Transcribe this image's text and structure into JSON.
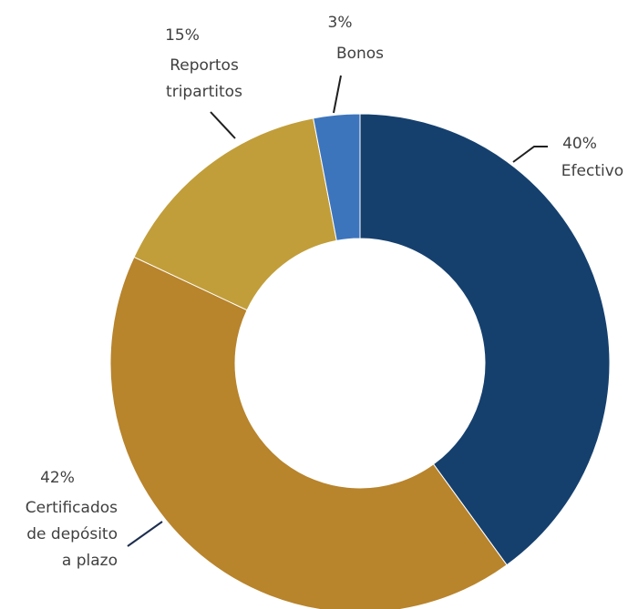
{
  "chart_data": {
    "type": "donut",
    "title": "",
    "slices": [
      {
        "label_lines": [
          "Efectivo"
        ],
        "pct_label": "40%",
        "value": 40,
        "color": "#15406e"
      },
      {
        "label_lines": [
          "Certificados",
          "de depósito",
          "a plazo"
        ],
        "pct_label": "42%",
        "value": 42,
        "color": "#b8842c"
      },
      {
        "label_lines": [
          "Reportos",
          "tripartitos"
        ],
        "pct_label": "15%",
        "value": 15,
        "color": "#c19e3a"
      },
      {
        "label_lines": [
          "Bonos"
        ],
        "pct_label": "3%",
        "value": 3,
        "color": "#3d75bd"
      }
    ],
    "legend": "none"
  }
}
